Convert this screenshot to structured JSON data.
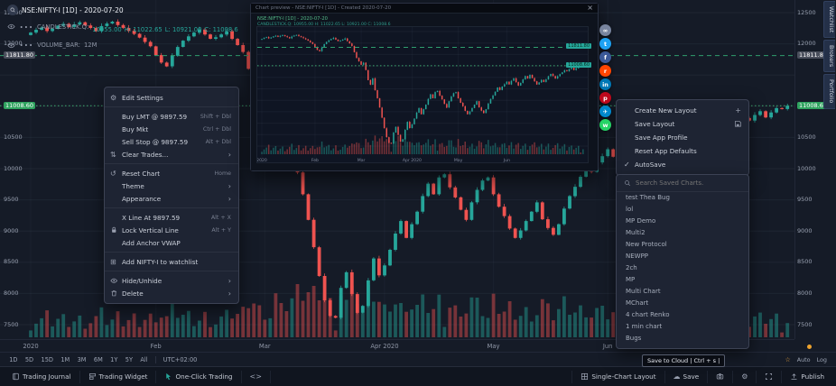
{
  "legend": {
    "symbol": "NSE:NIFTY-I [1D] - 2020-07-20",
    "series_label": "CANDLESTICK.Q:",
    "values": [
      "10955.00",
      "H: 11022.65",
      "L: 10921.00",
      "C: 11008.6"
    ],
    "volume_label": "VOLUME_BAR:",
    "volume_value": "12M"
  },
  "price_axis": {
    "labels": [
      {
        "text": "12500",
        "price": 12500,
        "style": "plain"
      },
      {
        "text": "12000",
        "price": 12000,
        "style": "plain"
      },
      {
        "text": "11811.80",
        "price": 11811.8,
        "style": "gray"
      },
      {
        "text": "11008.60",
        "price": 11008.6,
        "style": "green"
      },
      {
        "text": "10500",
        "price": 10500,
        "style": "plain"
      },
      {
        "text": "10000",
        "price": 10000,
        "style": "plain"
      },
      {
        "text": "9500",
        "price": 9500,
        "style": "plain"
      },
      {
        "text": "9000",
        "price": 9000,
        "style": "plain"
      },
      {
        "text": "8500",
        "price": 8500,
        "style": "plain"
      },
      {
        "text": "8000",
        "price": 8000,
        "style": "plain"
      },
      {
        "text": "7500",
        "price": 7500,
        "style": "plain"
      }
    ]
  },
  "chart_data": {
    "type": "candlestick",
    "symbol": "NSE:NIFTY-I",
    "interval": "1D",
    "last_date": "2020-07-20",
    "ohlc_display": {
      "o": 10955.0,
      "h": 11022.65,
      "l": 10921.0,
      "c": 11008.6
    },
    "high_line": 11811.8,
    "last_price": 11008.6,
    "ylim": [
      7500,
      12500
    ],
    "closes": [
      12180,
      12225,
      12260,
      12205,
      12240,
      12290,
      12320,
      12270,
      12310,
      12345,
      12295,
      12255,
      12205,
      12285,
      12325,
      12355,
      12300,
      12255,
      12210,
      12160,
      12100,
      12030,
      11960,
      11820,
      11700,
      11640,
      11810,
      11950,
      12050,
      12120,
      12180,
      12230,
      12150,
      12080,
      12105,
      12150,
      12200,
      12080,
      11980,
      11870,
      11600,
      11350,
      11200,
      11050,
      11140,
      10820,
      10380,
      10180,
      10460,
      9940,
      9590,
      9180,
      8740,
      8280,
      7890,
      7640,
      7611,
      8090,
      8340,
      7990,
      7690,
      7800,
      8210,
      8560,
      8290,
      8450,
      8700,
      8960,
      9160,
      8890,
      9110,
      9310,
      9560,
      9760,
      9590,
      9860,
      9910,
      9700,
      9540,
      9340,
      9180,
      9460,
      9660,
      9810,
      9860,
      9590,
      9390,
      9240,
      9040,
      8890,
      9010,
      9160,
      9310,
      9460,
      9190,
      9050,
      8940,
      9110,
      9360,
      9560,
      9710,
      9870,
      10060,
      9950,
      10100,
      10200,
      10310,
      10190,
      10350,
      10460,
      10290,
      10140,
      10260,
      10410,
      10560,
      10450,
      10610,
      10470,
      10330,
      10190,
      10280,
      10390,
      10300,
      10410,
      10550,
      10650,
      10560,
      10450,
      10550,
      10640,
      10720,
      10810,
      10770,
      10860,
      10920,
      10820,
      10900,
      10970,
      10955,
      11008.6
    ],
    "months": [
      {
        "label": "2020",
        "i": 0
      },
      {
        "label": "Feb",
        "i": 23
      },
      {
        "label": "Mar",
        "i": 43
      },
      {
        "label": "Apr 2020",
        "i": 65
      },
      {
        "label": "May",
        "i": 85
      },
      {
        "label": "Jun",
        "i": 106
      }
    ]
  },
  "context_menu": {
    "items": [
      {
        "id": "edit-settings",
        "icon": "gear",
        "label": "Edit Settings"
      },
      {
        "divider": true
      },
      {
        "id": "buy-lmt",
        "label": "Buy LMT @ 9897.59",
        "shortcut": "Shift + Dbl"
      },
      {
        "id": "buy-mkt",
        "label": "Buy Mkt",
        "shortcut": "Ctrl + Dbl"
      },
      {
        "id": "sell-stop",
        "label": "Sell Stop @ 9897.59",
        "shortcut": "Alt + Dbl"
      },
      {
        "id": "clear-trades",
        "icon": "clear",
        "label": "Clear Trades...",
        "submenu": true
      },
      {
        "divider": true
      },
      {
        "id": "reset-chart",
        "icon": "reset",
        "label": "Reset Chart",
        "shortcut": "Home"
      },
      {
        "id": "theme",
        "label": "Theme",
        "submenu": true
      },
      {
        "id": "appearance",
        "label": "Appearance",
        "submenu": true
      },
      {
        "divider": true
      },
      {
        "id": "x-line",
        "label": "X Line At 9897.59",
        "shortcut": "Alt + X"
      },
      {
        "id": "lock-vertical-line",
        "icon": "lock",
        "label": "Lock Vertical Line",
        "shortcut": "Alt + Y"
      },
      {
        "id": "add-anchor-vwap",
        "label": "Add Anchor VWAP"
      },
      {
        "divider": true
      },
      {
        "id": "add-to-watchlist",
        "icon": "watchlist",
        "label": "Add NIFTY-I to watchlist"
      },
      {
        "divider": true
      },
      {
        "id": "hide-unhide",
        "icon": "eye",
        "label": "Hide/Unhide",
        "submenu": true
      },
      {
        "id": "delete",
        "icon": "trash",
        "label": "Delete",
        "submenu": true
      }
    ]
  },
  "popup": {
    "title": "Chart preview - NSE:NIFTY-I [1D] - Created 2020-07-20",
    "close_glyph": "×",
    "legend1": "NSE:NIFTY-I [1D] - 2020-07-20",
    "legend2": "CANDLESTICK.Q: 10955.00  H: 11022.65  L: 10921.00  C: 11008.6",
    "price_labels": [
      {
        "text": "11811.80",
        "price": 11811.8
      },
      {
        "text": "11008.60",
        "price": 11008.6
      }
    ]
  },
  "share": {
    "icons": [
      {
        "name": "copy-link",
        "color": "#78849e",
        "glyph": "∞"
      },
      {
        "name": "twitter",
        "color": "#1da1f2",
        "glyph": "t"
      },
      {
        "name": "facebook",
        "color": "#3b5998",
        "glyph": "f"
      },
      {
        "name": "reddit",
        "color": "#ff4500",
        "glyph": "r"
      },
      {
        "name": "linkedin",
        "color": "#0077b5",
        "glyph": "in"
      },
      {
        "name": "pinterest",
        "color": "#bd081c",
        "glyph": "p"
      },
      {
        "name": "telegram",
        "color": "#0088cc",
        "glyph": "✈"
      },
      {
        "name": "whatsapp",
        "color": "#25d366",
        "glyph": "w"
      }
    ]
  },
  "layout_menu": {
    "items": [
      {
        "id": "create-new-layout",
        "label": "Create New Layout",
        "right_icon": "plus"
      },
      {
        "id": "save-layout",
        "label": "Save Layout",
        "right_icon": "floppy"
      },
      {
        "id": "save-app-profile",
        "label": "Save App Profile"
      },
      {
        "id": "reset-app-defaults",
        "label": "Reset App Defaults"
      },
      {
        "id": "autosave",
        "label": "AutoSave",
        "left_icon": "check"
      }
    ]
  },
  "saved_charts": {
    "search_placeholder": "Search Saved Charts.",
    "items": [
      "test Thea Bug",
      "lol",
      "MP Demo",
      "Multi2",
      "New Protocol",
      "NEWPP",
      "2ch",
      "MP",
      "Multi Chart",
      "MChart",
      "4 chart Renko",
      "1 min chart",
      "Bugs"
    ]
  },
  "range_bar": {
    "ranges": [
      "1D",
      "5D",
      "15D",
      "1M",
      "3M",
      "6M",
      "1Y",
      "5Y",
      "All"
    ],
    "timezone": "UTC+02:00",
    "right": [
      "Auto",
      "Log"
    ]
  },
  "status_bar": {
    "left": [
      {
        "id": "trading-journal",
        "icon": "journal",
        "label": "Trading Journal"
      },
      {
        "id": "trading-widget",
        "icon": "widget",
        "label": "Trading Widget"
      },
      {
        "id": "one-click-trading",
        "icon": "pointer",
        "label": "One-Click Trading",
        "icon_color": "#26a69a"
      },
      {
        "id": "code-editor",
        "icon": "code",
        "label": ""
      }
    ],
    "right": [
      {
        "id": "single-chart-layout",
        "icon": "grid",
        "label": "Single-Chart Layout"
      },
      {
        "id": "save",
        "icon": "cloud",
        "label": "Save"
      },
      {
        "id": "snapshot",
        "icon": "camera",
        "label": ""
      },
      {
        "id": "settings",
        "icon": "gear",
        "label": ""
      },
      {
        "id": "fullscreen",
        "icon": "fullscreen",
        "label": ""
      },
      {
        "id": "publish",
        "icon": "publish",
        "label": "Publish"
      }
    ],
    "tooltip": "Save to Cloud | Ctrl + s |"
  },
  "side_tabs": [
    "Watchlist",
    "Brokers",
    "Portfolio"
  ],
  "colors": {
    "up": "#26a69a",
    "down": "#ef5350",
    "label_green": "#2fa35f",
    "label_gray": "#4a4f5c"
  }
}
